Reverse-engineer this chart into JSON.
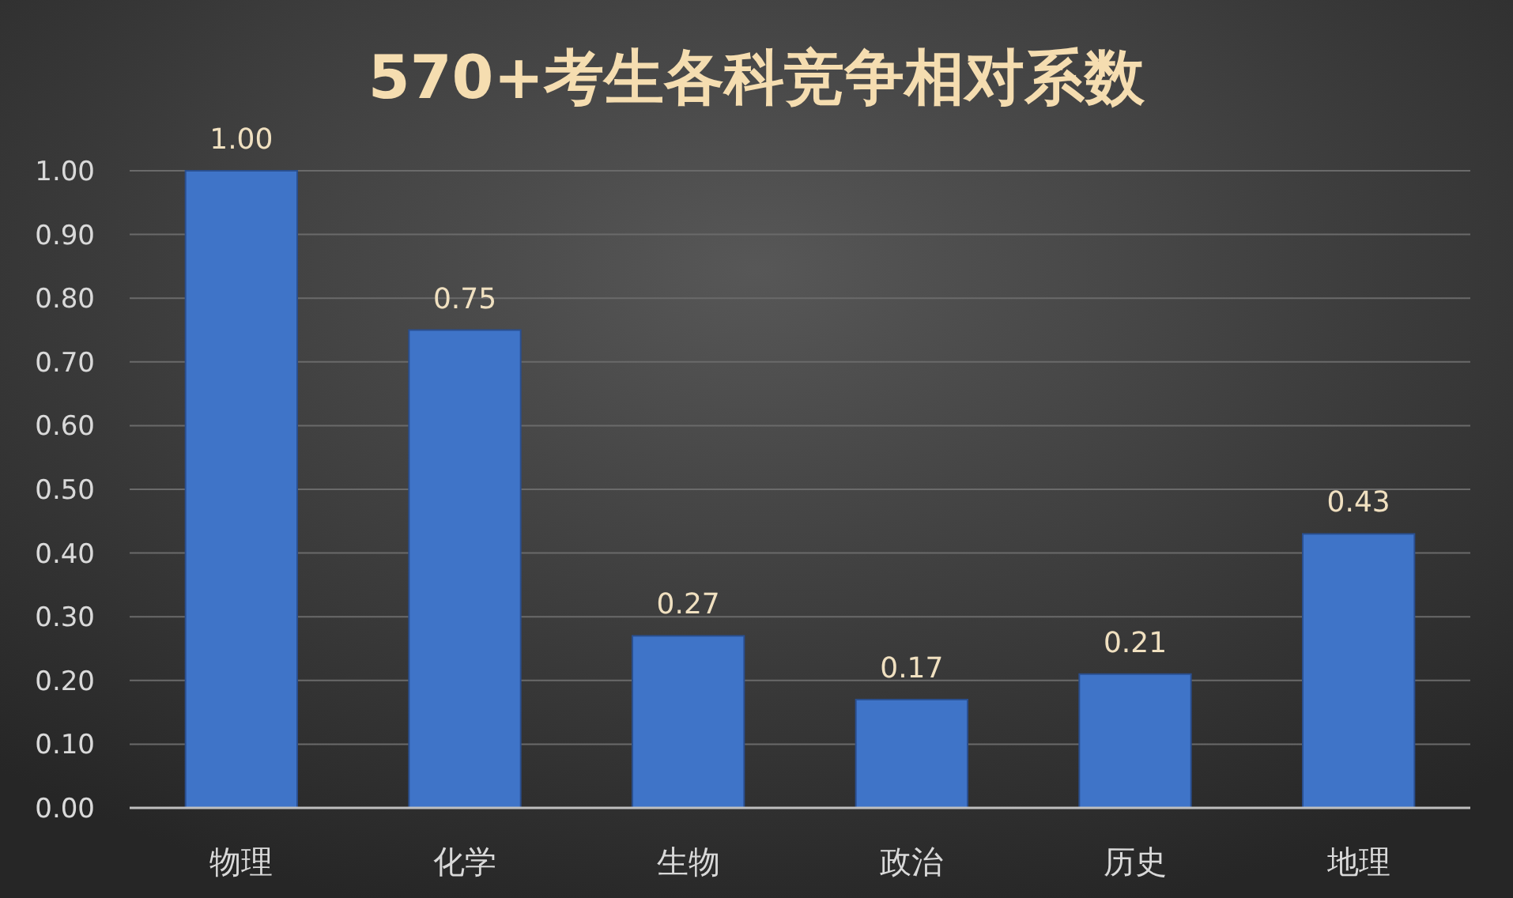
{
  "chart_data": {
    "type": "bar",
    "title": "570+考生各科竞争相对系数",
    "categories": [
      "物理",
      "化学",
      "生物",
      "政治",
      "历史",
      "地理"
    ],
    "values": [
      1.0,
      0.75,
      0.27,
      0.17,
      0.21,
      0.43
    ],
    "value_labels": [
      "1.00",
      "0.75",
      "0.27",
      "0.17",
      "0.21",
      "0.43"
    ],
    "color": "#3f74c8",
    "ylim": [
      0,
      1.0
    ],
    "yticks": [
      {
        "value": 0,
        "label": "0.00"
      },
      {
        "value": 0.1,
        "label": "0.10"
      },
      {
        "value": 0.2,
        "label": "0.20"
      },
      {
        "value": 0.3,
        "label": "0.30"
      },
      {
        "value": 0.4,
        "label": "0.40"
      },
      {
        "value": 0.5,
        "label": "0.50"
      },
      {
        "value": 0.6,
        "label": "0.60"
      },
      {
        "value": 0.7,
        "label": "0.70"
      },
      {
        "value": 0.8,
        "label": "0.80"
      },
      {
        "value": 0.9,
        "label": "0.90"
      },
      {
        "value": 1.0,
        "label": "1.00"
      }
    ],
    "grid": "y"
  }
}
